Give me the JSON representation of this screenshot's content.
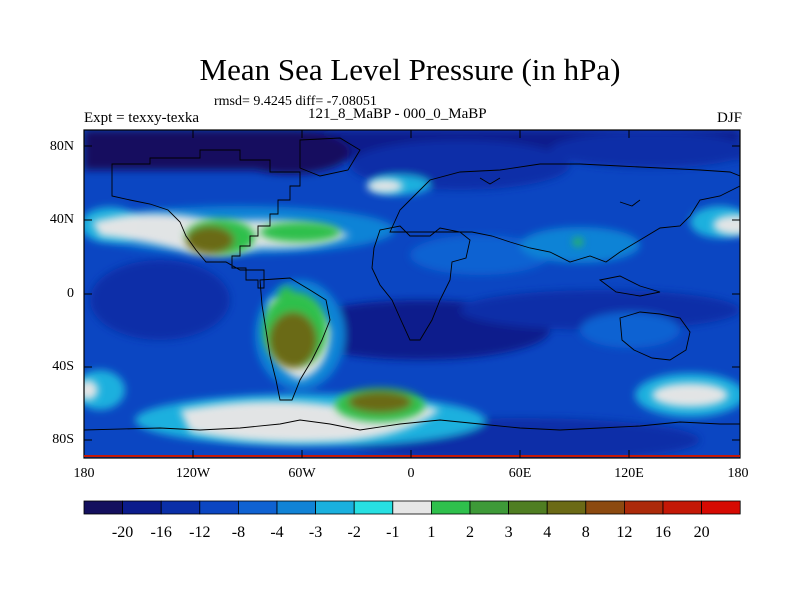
{
  "title": "Mean Sea Level Pressure (in hPa)",
  "stats": "rmsd= 9.4245  diff= -7.08051",
  "experiment": "Expt = texxy-texka",
  "difference_label": "121_8_MaBP - 000_0_MaBP",
  "season": "DJF",
  "x_ticks": [
    "180",
    "120W",
    "60W",
    "0",
    "60E",
    "120E",
    "180"
  ],
  "y_ticks": [
    "80N",
    "40N",
    "0",
    "40S",
    "80S"
  ],
  "colorbar": {
    "labels": [
      "-20",
      "-16",
      "-12",
      "-8",
      "-4",
      "-3",
      "-2",
      "-1",
      "1",
      "2",
      "3",
      "4",
      "8",
      "12",
      "16",
      "20"
    ],
    "colors": [
      "#14105e",
      "#0b1c8c",
      "#0a2fa8",
      "#0b46c2",
      "#0f62d2",
      "#1183d6",
      "#1ab0de",
      "#27e0e2",
      "#e6e6e6",
      "#2fc04c",
      "#3e9a38",
      "#4f7e22",
      "#6b6a16",
      "#8c4a10",
      "#ac2a0a",
      "#c41806",
      "#d60a02"
    ]
  }
}
